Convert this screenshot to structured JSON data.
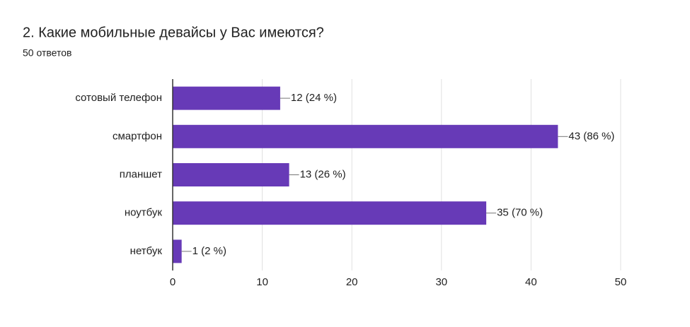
{
  "chart_data": {
    "type": "bar",
    "title": "2. Какие мобильные девайсы у Вас имеются?",
    "subtitle": "50 ответов",
    "categories": [
      "сотовый телефон",
      "смартфон",
      "планшет",
      "ноутбук",
      "нетбук"
    ],
    "values": [
      12,
      43,
      13,
      35,
      1
    ],
    "value_labels": [
      "12 (24 %)",
      "43 (86 %)",
      "13 (26 %)",
      "35 (70 %)",
      "1 (2 %)"
    ],
    "color": "#673ab7",
    "xlim": [
      0,
      50
    ],
    "xticks": [
      0,
      10,
      20,
      30,
      40,
      50
    ],
    "grid": true
  }
}
